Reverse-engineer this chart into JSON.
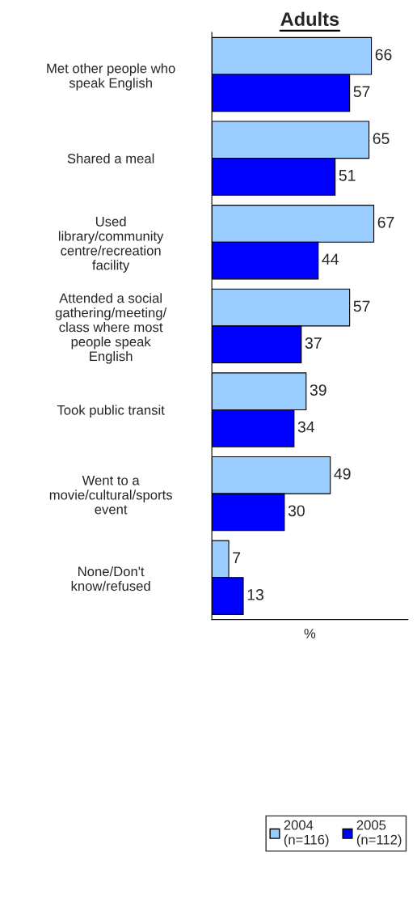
{
  "chart_data": {
    "type": "bar",
    "orientation": "horizontal",
    "title": "Adults",
    "xlabel": "%",
    "categories": [
      "Met other people who\nspeak English",
      "Shared a meal",
      "Used\nlibrary/community\ncentre/recreation\nfacility",
      "Attended a social\ngathering/meeting/\nclass where most\npeople speak\nEnglish",
      "Took public transit",
      "Went to a\nmovie/cultural/sports\nevent",
      "None/Don't\nknow/refused"
    ],
    "series": [
      {
        "name": "2004\n(n=116)",
        "color": "#99ccff",
        "values": [
          66,
          65,
          67,
          57,
          39,
          49,
          7
        ]
      },
      {
        "name": "2005\n(n=112)",
        "color": "#0000ff",
        "values": [
          57,
          51,
          44,
          37,
          34,
          30,
          13
        ]
      }
    ],
    "data_labels": true,
    "legend": "bottom right",
    "grid": false,
    "tick_labels": "y"
  }
}
